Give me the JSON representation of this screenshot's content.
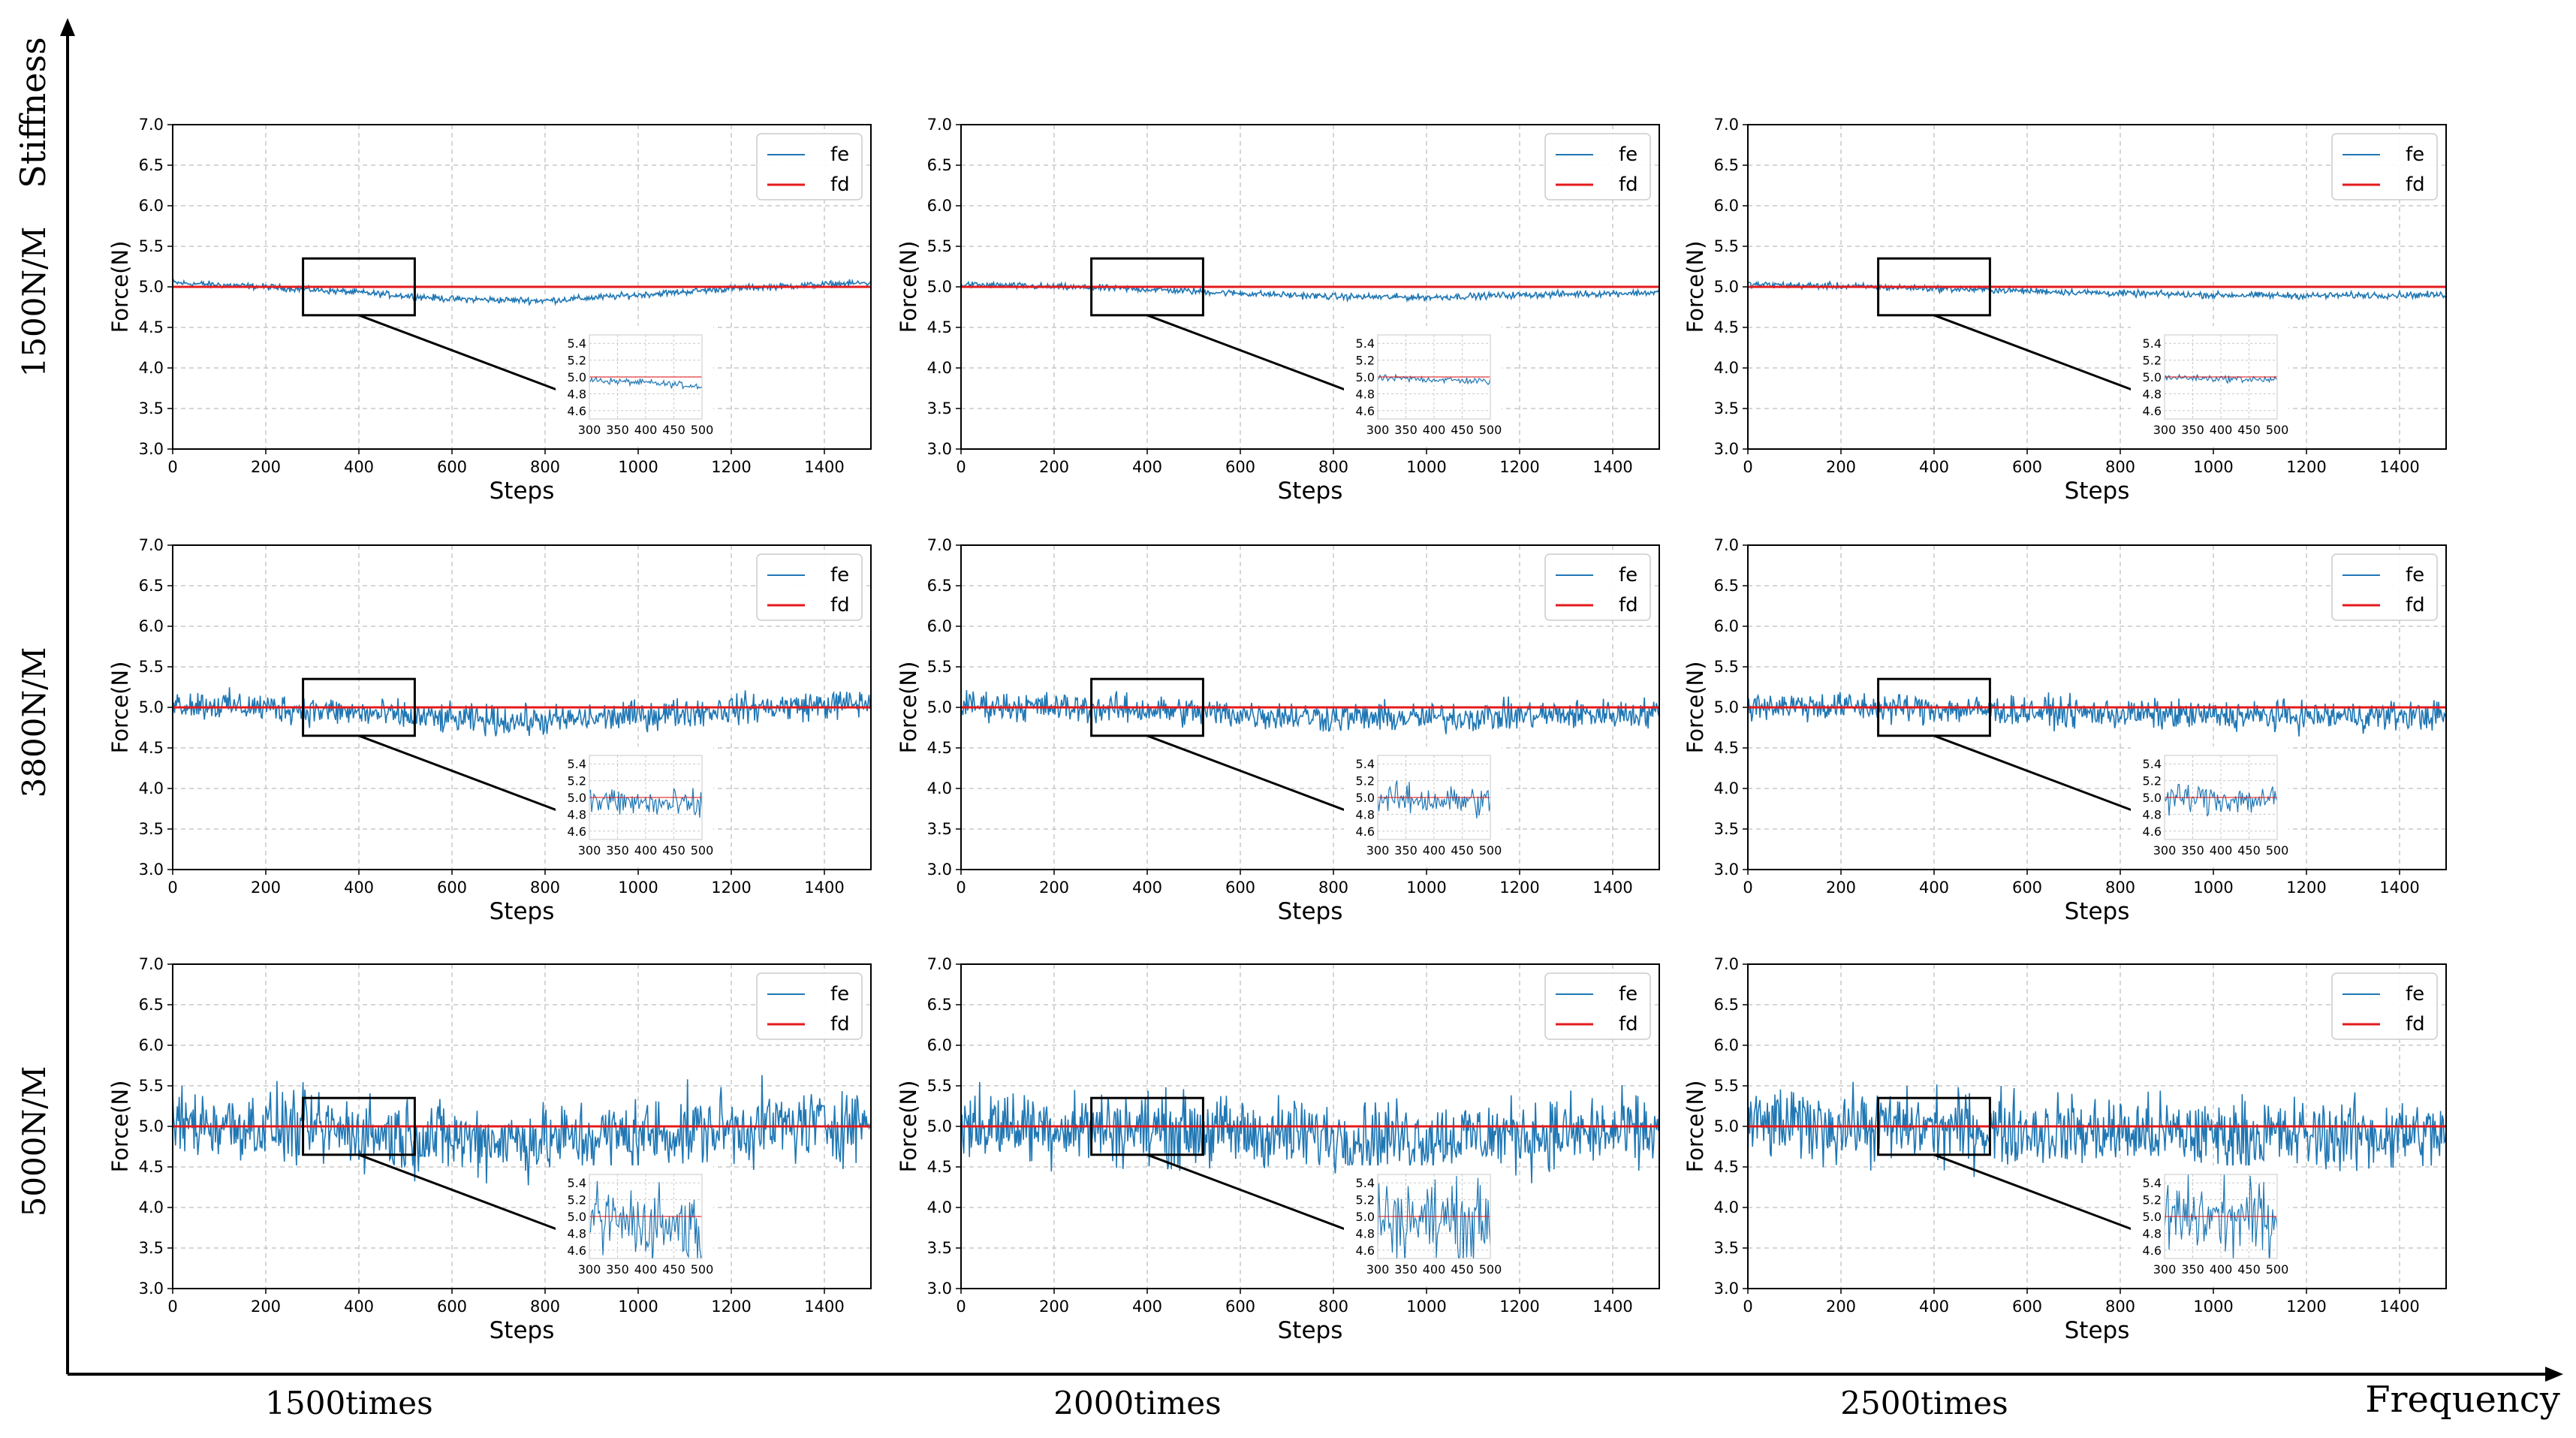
{
  "figure": {
    "y_axis_label": "Stiffness",
    "x_axis_label": "Frequency",
    "row_labels": [
      "1500N/M",
      "3800N/M",
      "5000N/M"
    ],
    "col_labels": [
      "1500times",
      "2000times",
      "2500times"
    ]
  },
  "colors": {
    "fe": "#1f77b4",
    "fd": "#e41a1c",
    "axis": "#000000",
    "grid": "#c8c8c8"
  },
  "chart_data": {
    "type": "line",
    "rows": [
      "1500N/M",
      "3800N/M",
      "5000N/M"
    ],
    "cols": [
      "1500times",
      "2000times",
      "2500times"
    ],
    "xlabel": "Steps",
    "ylabel": "Force(N)",
    "xlim": [
      0,
      1500
    ],
    "ylim": [
      3.0,
      7.0
    ],
    "xticks": [
      0,
      200,
      400,
      600,
      800,
      1000,
      1200,
      1400
    ],
    "yticks": [
      "3.0",
      "3.5",
      "4.0",
      "4.5",
      "5.0",
      "5.5",
      "6.0",
      "6.5",
      "7.0"
    ],
    "grid": true,
    "legend": {
      "position": "top-right",
      "entries": [
        "fe",
        "fd"
      ]
    },
    "fd_value": 5.0,
    "zoom_region": {
      "x": [
        280,
        520
      ],
      "y": [
        4.65,
        5.35
      ]
    },
    "inset": {
      "xlim": [
        300,
        500
      ],
      "ylim": [
        4.5,
        5.5
      ],
      "xticks": [
        "300",
        "350",
        "400",
        "450",
        "500"
      ],
      "yticks": [
        "4.6",
        "4.8",
        "5.0",
        "5.2",
        "5.4"
      ]
    },
    "fe_trend_keypoints": {
      "1500times": {
        "steps": [
          0,
          200,
          400,
          600,
          800,
          1000,
          1200,
          1400,
          1500
        ],
        "force": [
          5.05,
          5.0,
          4.93,
          4.85,
          4.83,
          4.9,
          4.98,
          5.03,
          5.05
        ]
      },
      "2000times": {
        "steps": [
          0,
          200,
          400,
          600,
          800,
          1000,
          1200,
          1400,
          1500
        ],
        "force": [
          5.03,
          5.0,
          4.97,
          4.92,
          4.88,
          4.87,
          4.9,
          4.92,
          4.93
        ]
      },
      "2500times": {
        "steps": [
          0,
          200,
          400,
          600,
          800,
          1000,
          1200,
          1400,
          1500
        ],
        "force": [
          5.03,
          5.01,
          4.98,
          4.95,
          4.92,
          4.9,
          4.89,
          4.9,
          4.9
        ]
      }
    },
    "fe_noise_amplitude": {
      "1500N/M": 0.02,
      "3800N/M": 0.09,
      "5000N/M": 0.22
    }
  }
}
